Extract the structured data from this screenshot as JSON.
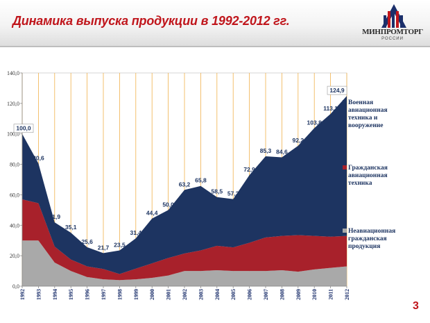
{
  "slide": {
    "title": "Динамика выпуска продукции в 1992-2012 гг.",
    "page_number": "3"
  },
  "logo": {
    "name": "МИНПРОМТОРГ",
    "subtitle": "РОССИИ",
    "colors": [
      "#1b2f6b",
      "#c0161c"
    ]
  },
  "colors": {
    "military": "#1d3461",
    "civil": "#a8212b",
    "non_aviation": "#a9a9a9",
    "grid": "#f0b14b",
    "title": "#c0161c"
  },
  "chart_data": {
    "type": "area",
    "stacked": true,
    "x": [
      "1992",
      "1993",
      "1994",
      "1995",
      "1996",
      "1997",
      "1998",
      "1999",
      "2000",
      "2001",
      "2002",
      "2003",
      "2004",
      "2005",
      "2006",
      "2007",
      "2008",
      "2009",
      "2010",
      "2011",
      "2012"
    ],
    "ylim": [
      0,
      140
    ],
    "yticks": [
      "0,0",
      "20,0",
      "40,0",
      "60,0",
      "80,0",
      "100,0",
      "120,0",
      "140,0"
    ],
    "grid": "vertical",
    "series": [
      {
        "name": "Неавиационная гражданская продукция",
        "color": "#a9a9a9",
        "values": [
          30,
          30,
          15.5,
          10,
          6,
          4.5,
          4,
          4.5,
          5.5,
          7,
          10,
          10,
          10.5,
          10,
          10,
          10,
          10.5,
          9.5,
          11,
          12,
          13
        ]
      },
      {
        "name": "Гражданская авиационная техника",
        "color": "#a8212b",
        "values": [
          27,
          24.5,
          10.5,
          7.5,
          7,
          6.8,
          4,
          7,
          9.5,
          11.5,
          11.5,
          13.5,
          16,
          15.5,
          18.5,
          22,
          22.5,
          24,
          22,
          20.5,
          20
        ]
      },
      {
        "name": "Военная авиационная техника и вооружение",
        "color": "#1d3461",
        "values": [
          43,
          26.1,
          15.9,
          17.6,
          12.6,
          10.4,
          15.5,
          19.9,
          29.4,
          31.5,
          41.7,
          42.3,
          32,
          31.7,
          44.4,
          53.3,
          51.6,
          58.7,
          70.8,
          80.6,
          91.9
        ]
      }
    ],
    "data_labels": [
      "100,0",
      "80,6",
      "41,9",
      "35,1",
      "25,6",
      "21,7",
      "23,5",
      "31,4",
      "44,4",
      "50,0",
      "63,2",
      "65,8",
      "58,5",
      "57,2",
      "72,9",
      "85,3",
      "84,6",
      "92,2",
      "103,8",
      "113,1",
      "124,9"
    ],
    "legend_position": "right",
    "legend": [
      {
        "label": "Военная авиационная техника и вооружение",
        "color": "#1d3461"
      },
      {
        "label": "Гражданская авиационная техника",
        "color": "#a8212b"
      },
      {
        "label": "Неавиационная гражданская продукция",
        "color": "#a9a9a9"
      }
    ]
  }
}
